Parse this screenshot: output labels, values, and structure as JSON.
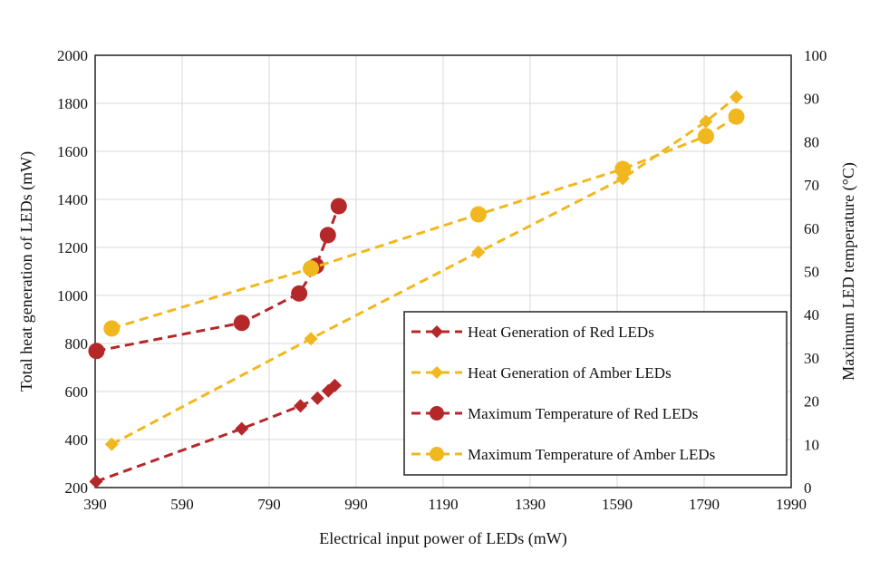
{
  "chart_data": {
    "type": "line",
    "xlabel": "Electrical input power of LEDs (mW)",
    "ylabel": "Total heat generation of LEDs (mW)",
    "y2label": "Maximum LED temperature (°C)",
    "xlim": [
      390,
      1990
    ],
    "ylim": [
      200,
      2000
    ],
    "y2lim": [
      0,
      100
    ],
    "xticks": [
      390,
      590,
      790,
      990,
      1190,
      1390,
      1590,
      1790,
      1990
    ],
    "yticks": [
      200,
      400,
      600,
      800,
      1000,
      1200,
      1400,
      1600,
      1800,
      2000
    ],
    "y2ticks": [
      0,
      10,
      20,
      30,
      40,
      50,
      60,
      70,
      80,
      90,
      100
    ],
    "grid": true,
    "legend_position": "bottom-right",
    "series": [
      {
        "name": "Heat Generation of Red LEDs",
        "axis": "left",
        "marker": "diamond",
        "color": "#B5282A",
        "x": [
          392,
          727,
          862,
          901,
          926,
          941
        ],
        "y": [
          225,
          445,
          540,
          572,
          603,
          625
        ]
      },
      {
        "name": "Heat Generation of Amber LEDs",
        "axis": "left",
        "marker": "diamond",
        "color": "#F0B81E",
        "x": [
          428,
          886,
          1271,
          1603,
          1794,
          1864
        ],
        "y": [
          380,
          820,
          1180,
          1487,
          1724,
          1826
        ]
      },
      {
        "name": "Maximum Temperature of Red LEDs",
        "axis": "right",
        "marker": "circle",
        "color": "#B5282A",
        "x": [
          393,
          727,
          859,
          898,
          925,
          950
        ],
        "y": [
          31.6,
          38.1,
          44.9,
          51.3,
          58.4,
          65.1
        ]
      },
      {
        "name": "Maximum Temperature of Amber LEDs",
        "axis": "right",
        "marker": "circle",
        "color": "#F0B81E",
        "x": [
          428,
          886,
          1271,
          1603,
          1794,
          1864
        ],
        "y": [
          36.8,
          50.7,
          63.2,
          73.7,
          81.3,
          85.8
        ]
      }
    ]
  }
}
